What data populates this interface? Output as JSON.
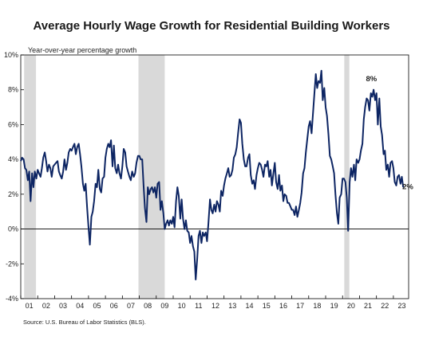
{
  "chart_data": {
    "type": "line",
    "title": "Average Hourly Wage Growth for Residential Building Workers",
    "ylabel": "Year-over-year percentage growth",
    "xlabel": "",
    "ylim": [
      -4,
      10
    ],
    "xlim": [
      2001.0,
      2023.9
    ],
    "y_ticks": [
      "-4%",
      "-2%",
      "0%",
      "2%",
      "4%",
      "6%",
      "8%",
      "10%"
    ],
    "y_tick_values": [
      -4,
      -2,
      0,
      2,
      4,
      6,
      8,
      10
    ],
    "x_ticks": [
      "01",
      "02",
      "03",
      "04",
      "05",
      "06",
      "07",
      "08",
      "09",
      "10",
      "11",
      "12",
      "13",
      "14",
      "15",
      "16",
      "17",
      "18",
      "19",
      "20",
      "21",
      "22",
      "23"
    ],
    "x_tick_values": [
      2001,
      2002,
      2003,
      2004,
      2005,
      2006,
      2007,
      2008,
      2009,
      2010,
      2011,
      2012,
      2013,
      2014,
      2015,
      2016,
      2017,
      2018,
      2019,
      2020,
      2021,
      2022,
      2023
    ],
    "grid": false,
    "recessions": [
      {
        "start": 2001.2,
        "end": 2001.9
      },
      {
        "start": 2007.95,
        "end": 2009.5
      },
      {
        "start": 2020.1,
        "end": 2020.4
      }
    ],
    "annotations": [
      {
        "text": "8%",
        "x": 2021.7,
        "y": 8.5
      },
      {
        "text": "2%",
        "x": 2023.85,
        "y": 2.3
      }
    ],
    "series": [
      {
        "color": "#0d2563",
        "x": [
          2001.0,
          2001.08,
          2001.17,
          2001.25,
          2001.33,
          2001.42,
          2001.5,
          2001.58,
          2001.67,
          2001.75,
          2001.83,
          2001.92,
          2002.0,
          2002.08,
          2002.17,
          2002.25,
          2002.33,
          2002.42,
          2002.5,
          2002.58,
          2002.67,
          2002.75,
          2002.83,
          2002.92,
          2003.0,
          2003.08,
          2003.17,
          2003.25,
          2003.33,
          2003.42,
          2003.5,
          2003.58,
          2003.67,
          2003.75,
          2003.83,
          2003.92,
          2004.0,
          2004.08,
          2004.17,
          2004.25,
          2004.33,
          2004.42,
          2004.5,
          2004.58,
          2004.67,
          2004.75,
          2004.83,
          2004.92,
          2005.0,
          2005.08,
          2005.17,
          2005.25,
          2005.33,
          2005.42,
          2005.5,
          2005.58,
          2005.67,
          2005.75,
          2005.83,
          2005.92,
          2006.0,
          2006.08,
          2006.17,
          2006.25,
          2006.33,
          2006.42,
          2006.5,
          2006.58,
          2006.67,
          2006.75,
          2006.83,
          2006.92,
          2007.0,
          2007.08,
          2007.17,
          2007.25,
          2007.33,
          2007.42,
          2007.5,
          2007.58,
          2007.67,
          2007.75,
          2007.83,
          2007.92,
          2008.0,
          2008.08,
          2008.17,
          2008.25,
          2008.33,
          2008.42,
          2008.5,
          2008.58,
          2008.67,
          2008.75,
          2008.83,
          2008.92,
          2009.0,
          2009.08,
          2009.17,
          2009.25,
          2009.33,
          2009.42,
          2009.5,
          2009.58,
          2009.67,
          2009.75,
          2009.83,
          2009.92,
          2010.0,
          2010.08,
          2010.17,
          2010.25,
          2010.33,
          2010.42,
          2010.5,
          2010.58,
          2010.67,
          2010.75,
          2010.83,
          2010.92,
          2011.0,
          2011.08,
          2011.17,
          2011.25,
          2011.33,
          2011.42,
          2011.5,
          2011.58,
          2011.67,
          2011.75,
          2011.83,
          2011.92,
          2012.0,
          2012.08,
          2012.17,
          2012.25,
          2012.33,
          2012.42,
          2012.5,
          2012.58,
          2012.67,
          2012.75,
          2012.83,
          2012.92,
          2013.0,
          2013.08,
          2013.17,
          2013.25,
          2013.33,
          2013.42,
          2013.5,
          2013.58,
          2013.67,
          2013.75,
          2013.83,
          2013.92,
          2014.0,
          2014.08,
          2014.17,
          2014.25,
          2014.33,
          2014.42,
          2014.5,
          2014.58,
          2014.67,
          2014.75,
          2014.83,
          2014.92,
          2015.0,
          2015.08,
          2015.17,
          2015.25,
          2015.33,
          2015.42,
          2015.5,
          2015.58,
          2015.67,
          2015.75,
          2015.83,
          2015.92,
          2016.0,
          2016.08,
          2016.17,
          2016.25,
          2016.33,
          2016.42,
          2016.5,
          2016.58,
          2016.67,
          2016.75,
          2016.83,
          2016.92,
          2017.0,
          2017.08,
          2017.17,
          2017.25,
          2017.33,
          2017.42,
          2017.5,
          2017.58,
          2017.67,
          2017.75,
          2017.83,
          2017.92,
          2018.0,
          2018.08,
          2018.17,
          2018.25,
          2018.33,
          2018.42,
          2018.5,
          2018.58,
          2018.67,
          2018.75,
          2018.83,
          2018.92,
          2019.0,
          2019.08,
          2019.17,
          2019.25,
          2019.33,
          2019.42,
          2019.5,
          2019.58,
          2019.67,
          2019.75,
          2019.83,
          2019.92,
          2020.0,
          2020.08,
          2020.17,
          2020.25,
          2020.33,
          2020.42,
          2020.5,
          2020.58,
          2020.67,
          2020.75,
          2020.83,
          2020.92,
          2021.0,
          2021.08,
          2021.17,
          2021.25,
          2021.33,
          2021.42,
          2021.5,
          2021.58,
          2021.67,
          2021.75,
          2021.83,
          2021.92,
          2022.0,
          2022.08,
          2022.17,
          2022.25,
          2022.33,
          2022.42,
          2022.5,
          2022.58,
          2022.67,
          2022.75,
          2022.83,
          2022.92,
          2023.0,
          2023.08,
          2023.17,
          2023.25,
          2023.33,
          2023.42,
          2023.5,
          2023.58
        ],
        "y": [
          3.9,
          4.1,
          4.0,
          3.5,
          3.4,
          2.8,
          3.3,
          1.6,
          3.2,
          2.4,
          3.3,
          2.9,
          3.4,
          3.2,
          3.0,
          3.5,
          4.1,
          4.4,
          3.9,
          3.3,
          3.7,
          3.5,
          3.0,
          3.6,
          3.7,
          3.8,
          3.9,
          3.3,
          3.1,
          2.9,
          3.3,
          4.0,
          3.4,
          3.8,
          4.4,
          4.6,
          4.5,
          4.7,
          4.9,
          4.3,
          4.7,
          4.9,
          4.3,
          3.6,
          2.6,
          2.2,
          2.6,
          1.2,
          0.1,
          -0.9,
          0.7,
          1.0,
          1.6,
          2.6,
          2.4,
          3.4,
          2.3,
          2.1,
          2.9,
          3.0,
          4.1,
          4.6,
          4.9,
          4.7,
          5.1,
          3.6,
          4.8,
          3.5,
          3.2,
          3.7,
          3.2,
          2.9,
          3.6,
          4.6,
          4.4,
          3.6,
          3.3,
          3.0,
          2.8,
          3.3,
          3.0,
          3.2,
          3.8,
          4.2,
          4.2,
          4.0,
          4.0,
          2.5,
          1.2,
          0.4,
          2.4,
          2.0,
          2.3,
          2.4,
          2.1,
          2.4,
          1.8,
          2.6,
          2.7,
          1.1,
          1.6,
          0.9,
          0.0,
          0.3,
          0.5,
          0.2,
          0.5,
          0.3,
          0.7,
          0.1,
          1.6,
          2.4,
          1.9,
          0.6,
          1.7,
          0.6,
          0.0,
          0.5,
          -0.1,
          -0.2,
          -0.8,
          -0.4,
          -1.0,
          -1.3,
          -2.9,
          -1.7,
          -0.4,
          -0.1,
          -0.8,
          -0.2,
          -0.4,
          -0.2,
          -0.7,
          0.3,
          1.7,
          1.1,
          0.9,
          1.4,
          1.0,
          1.6,
          1.4,
          1.0,
          2.2,
          1.9,
          2.5,
          2.9,
          3.2,
          3.5,
          3.0,
          3.1,
          3.4,
          4.1,
          4.3,
          4.7,
          5.5,
          6.3,
          6.1,
          4.9,
          4.0,
          3.6,
          3.6,
          4.1,
          4.3,
          3.1,
          2.6,
          2.8,
          2.3,
          3.1,
          3.5,
          3.8,
          3.7,
          3.4,
          3.0,
          3.7,
          3.6,
          3.9,
          3.0,
          3.4,
          2.5,
          3.2,
          3.8,
          2.7,
          2.3,
          3.1,
          2.2,
          2.5,
          1.6,
          2.0,
          1.9,
          1.5,
          1.5,
          1.3,
          1.1,
          1.1,
          0.8,
          1.3,
          0.7,
          1.1,
          1.5,
          2.1,
          3.2,
          3.5,
          4.4,
          5.2,
          5.9,
          6.2,
          5.5,
          6.6,
          7.7,
          8.9,
          8.1,
          8.5,
          8.4,
          9.1,
          7.4,
          8.1,
          7.0,
          6.5,
          5.4,
          4.2,
          4.0,
          3.6,
          3.2,
          2.0,
          0.9,
          0.3,
          1.8,
          2.0,
          2.9,
          2.9,
          2.7,
          1.8,
          -0.1,
          2.7,
          3.5,
          3.0,
          3.7,
          2.8,
          4.0,
          3.8,
          4.0,
          4.5,
          4.9,
          6.3,
          7.0,
          7.5,
          7.4,
          6.8,
          7.8,
          7.6,
          8.0,
          7.4,
          7.8,
          6.0,
          7.5,
          5.9,
          5.4,
          4.3,
          4.5,
          3.4,
          3.7,
          3.0,
          3.8,
          3.9,
          3.5,
          2.7,
          2.5,
          3.0,
          3.1,
          2.6,
          3.0,
          2.4
        ]
      }
    ]
  },
  "source_note": "Source: U.S. Bureau of Labor Statistics (BLS)."
}
